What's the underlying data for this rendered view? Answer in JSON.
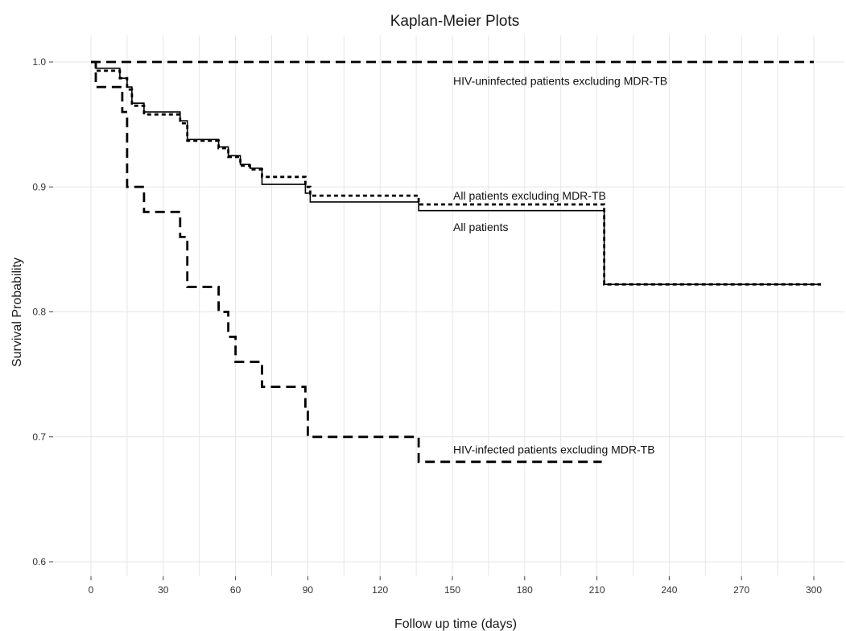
{
  "chart_data": {
    "type": "line",
    "title": "Kaplan-Meier Plots",
    "xlabel": "Follow up time (days)",
    "ylabel": "Survival Probability",
    "xlim": [
      0,
      305
    ],
    "ylim": [
      0.58,
      1.02
    ],
    "x_ticks": [
      0,
      30,
      60,
      90,
      120,
      150,
      180,
      210,
      240,
      270,
      300
    ],
    "y_ticks": [
      0.6,
      0.7,
      0.8,
      0.9,
      1.0
    ],
    "y_tick_labels": [
      "0.6",
      "0.7",
      "0.8",
      "0.9",
      "1.0"
    ],
    "grid": true,
    "legend": "none",
    "series": [
      {
        "style": "long-dash",
        "label": "HIV-uninfected patients excluding MDR-TB",
        "points": [
          [
            0,
            1.0
          ],
          [
            300,
            1.0
          ]
        ]
      },
      {
        "style": "solid",
        "label": "All patients",
        "points": [
          [
            0,
            1.0
          ],
          [
            2,
            1.0
          ],
          [
            2,
            0.995
          ],
          [
            12,
            0.995
          ],
          [
            12,
            0.987
          ],
          [
            15,
            0.987
          ],
          [
            15,
            0.98
          ],
          [
            17,
            0.98
          ],
          [
            17,
            0.967
          ],
          [
            22,
            0.967
          ],
          [
            22,
            0.96
          ],
          [
            37,
            0.96
          ],
          [
            37,
            0.953
          ],
          [
            40,
            0.953
          ],
          [
            40,
            0.938
          ],
          [
            53,
            0.938
          ],
          [
            53,
            0.932
          ],
          [
            57,
            0.932
          ],
          [
            57,
            0.925
          ],
          [
            62,
            0.925
          ],
          [
            62,
            0.918
          ],
          [
            66,
            0.918
          ],
          [
            66,
            0.915
          ],
          [
            71,
            0.915
          ],
          [
            71,
            0.902
          ],
          [
            89,
            0.902
          ],
          [
            89,
            0.895
          ],
          [
            91,
            0.895
          ],
          [
            91,
            0.888
          ],
          [
            136,
            0.888
          ],
          [
            136,
            0.881
          ],
          [
            213,
            0.881
          ],
          [
            213,
            0.822
          ],
          [
            303,
            0.822
          ]
        ]
      },
      {
        "style": "short-dash",
        "label": "All patients excluding MDR-TB",
        "points": [
          [
            0,
            1.0
          ],
          [
            2,
            1.0
          ],
          [
            2,
            0.993
          ],
          [
            12,
            0.993
          ],
          [
            12,
            0.987
          ],
          [
            15,
            0.987
          ],
          [
            15,
            0.978
          ],
          [
            17,
            0.978
          ],
          [
            17,
            0.965
          ],
          [
            22,
            0.965
          ],
          [
            22,
            0.958
          ],
          [
            37,
            0.958
          ],
          [
            37,
            0.951
          ],
          [
            40,
            0.951
          ],
          [
            40,
            0.937
          ],
          [
            53,
            0.937
          ],
          [
            53,
            0.931
          ],
          [
            57,
            0.931
          ],
          [
            57,
            0.924
          ],
          [
            62,
            0.924
          ],
          [
            62,
            0.917
          ],
          [
            66,
            0.917
          ],
          [
            66,
            0.914
          ],
          [
            71,
            0.914
          ],
          [
            71,
            0.908
          ],
          [
            89,
            0.908
          ],
          [
            89,
            0.9
          ],
          [
            91,
            0.9
          ],
          [
            91,
            0.893
          ],
          [
            136,
            0.893
          ],
          [
            136,
            0.886
          ],
          [
            213,
            0.886
          ],
          [
            213,
            0.822
          ],
          [
            303,
            0.822
          ]
        ]
      },
      {
        "style": "long-dash",
        "label": "HIV-infected patients excluding MDR-TB",
        "points": [
          [
            0,
            1.0
          ],
          [
            2,
            1.0
          ],
          [
            2,
            0.98
          ],
          [
            13,
            0.98
          ],
          [
            13,
            0.96
          ],
          [
            15,
            0.96
          ],
          [
            15,
            0.9
          ],
          [
            22,
            0.9
          ],
          [
            22,
            0.88
          ],
          [
            37,
            0.88
          ],
          [
            37,
            0.86
          ],
          [
            40,
            0.86
          ],
          [
            40,
            0.82
          ],
          [
            53,
            0.82
          ],
          [
            53,
            0.8
          ],
          [
            57,
            0.8
          ],
          [
            57,
            0.78
          ],
          [
            60,
            0.78
          ],
          [
            60,
            0.76
          ],
          [
            71,
            0.76
          ],
          [
            71,
            0.74
          ],
          [
            89,
            0.74
          ],
          [
            89,
            0.72
          ],
          [
            90,
            0.72
          ],
          [
            90,
            0.7
          ],
          [
            136,
            0.7
          ],
          [
            136,
            0.68
          ],
          [
            212,
            0.68
          ]
        ]
      }
    ],
    "annotations": [
      {
        "text": "HIV-uninfected patients excluding MDR-TB",
        "x": 150,
        "y": 0.985
      },
      {
        "text": "All patients excluding MDR-TB",
        "x": 150,
        "y": 0.893
      },
      {
        "text": "All patients",
        "x": 150,
        "y": 0.868
      },
      {
        "text": "HIV-infected patients excluding MDR-TB",
        "x": 150,
        "y": 0.69
      }
    ]
  }
}
